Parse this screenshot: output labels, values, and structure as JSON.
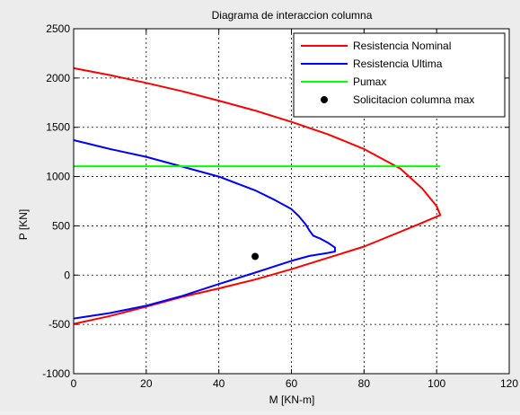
{
  "chart_data": {
    "type": "line",
    "title": "Diagrama de interaccion columna",
    "xlabel": "M [KN-m]",
    "ylabel": "P [KN]",
    "xlim": [
      0,
      120
    ],
    "ylim": [
      -1000,
      2500
    ],
    "x_ticks": [
      "0",
      "20",
      "40",
      "60",
      "80",
      "100",
      "120"
    ],
    "y_ticks": [
      "-1000",
      "-500",
      "0",
      "500",
      "1000",
      "1500",
      "2000",
      "2500"
    ],
    "grid": true,
    "legend_position": "top-right",
    "series": [
      {
        "name": "Resistencia Nominal",
        "color": "#ff0000",
        "kind": "line",
        "x": [
          0,
          10,
          20,
          30,
          40,
          50,
          60,
          70,
          80,
          90,
          96,
          100,
          101,
          96,
          90,
          80,
          70,
          60,
          50,
          40,
          30,
          20,
          10,
          0
        ],
        "y": [
          2100,
          2030,
          1950,
          1865,
          1770,
          1670,
          1555,
          1430,
          1280,
          1080,
          880,
          700,
          610,
          530,
          440,
          290,
          175,
          60,
          -45,
          -135,
          -220,
          -320,
          -415,
          -495
        ]
      },
      {
        "name": "Resistencia Ultima",
        "color": "#0000ff",
        "kind": "line",
        "x": [
          0,
          10,
          20,
          30,
          40,
          50,
          55,
          60,
          62,
          64,
          65,
          66,
          68,
          70,
          72,
          72,
          70,
          65,
          60,
          50,
          40,
          30,
          20,
          10,
          0
        ],
        "y": [
          1370,
          1280,
          1200,
          1100,
          1000,
          860,
          770,
          670,
          600,
          510,
          450,
          400,
          370,
          330,
          280,
          240,
          225,
          195,
          145,
          25,
          -90,
          -210,
          -310,
          -385,
          -440
        ]
      },
      {
        "name": "Pumax",
        "color": "#00ff00",
        "kind": "line",
        "x": [
          0,
          101
        ],
        "y": [
          1105,
          1105
        ]
      },
      {
        "name": "Solicitacion columna max",
        "color": "#000000",
        "kind": "scatter",
        "x": [
          50
        ],
        "y": [
          190
        ]
      }
    ]
  }
}
